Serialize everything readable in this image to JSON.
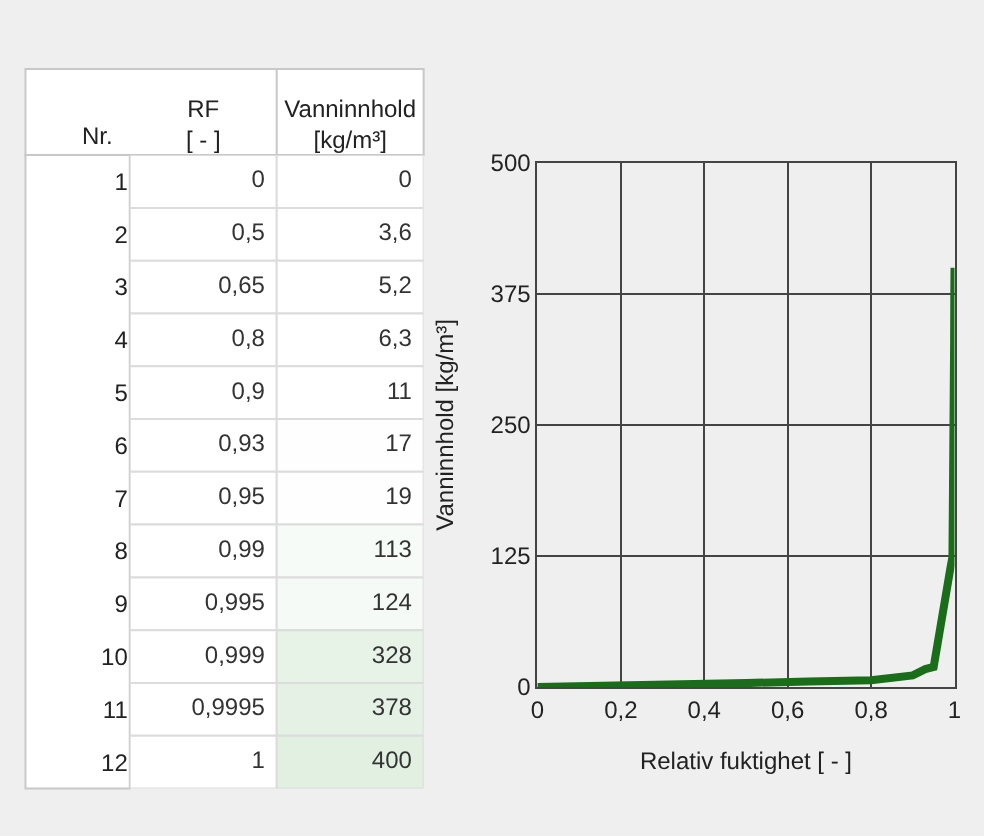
{
  "chart_data": [
    {
      "type": "heatmap",
      "annotations": [
        "Nr."
      ],
      "categories": [
        "RF [ - ]",
        "Vanninnhold [kg/m³]"
      ],
      "y_categories": [
        "1",
        "2",
        "3",
        "4",
        "5",
        "6",
        "7",
        "8",
        "9",
        "10",
        "11",
        "12"
      ],
      "cells": [
        [
          0,
          0
        ],
        [
          0.5,
          3.6
        ],
        [
          0.65,
          5.2
        ],
        [
          0.8,
          6.3
        ],
        [
          0.9,
          11
        ],
        [
          0.93,
          17
        ],
        [
          0.95,
          19
        ],
        [
          0.99,
          113
        ],
        [
          0.995,
          124
        ],
        [
          0.999,
          328
        ],
        [
          0.9995,
          378
        ],
        [
          1,
          400
        ]
      ],
      "cell_labels": [
        [
          "0",
          "0"
        ],
        [
          "0,5",
          "3,6"
        ],
        [
          "0,65",
          "5,2"
        ],
        [
          "0,8",
          "6,3"
        ],
        [
          "0,9",
          "11"
        ],
        [
          "0,93",
          "17"
        ],
        [
          "0,95",
          "19"
        ],
        [
          "0,99",
          "113"
        ],
        [
          "0,995",
          "124"
        ],
        [
          "0,999",
          "328"
        ],
        [
          "0,9995",
          "378"
        ],
        [
          "1",
          "400"
        ]
      ]
    },
    {
      "type": "line",
      "xlabel": "Relativ fuktighet [ - ]",
      "ylabel": "Vanninnhold [kg/m³]",
      "x": [
        0,
        0.5,
        0.65,
        0.8,
        0.9,
        0.93,
        0.95,
        0.99,
        0.995,
        0.999,
        0.9995,
        1
      ],
      "series": [
        {
          "color": "#1a6e1a",
          "values": [
            0,
            3.6,
            5.2,
            6.3,
            11,
            17,
            19,
            113,
            124,
            328,
            378,
            400
          ]
        }
      ],
      "xlim": [
        0,
        1
      ],
      "ylim": [
        0,
        500
      ],
      "xticks": [
        0,
        {
          "value": 0.2,
          "label": "0,2"
        },
        {
          "value": 0.4,
          "label": "0,4"
        },
        {
          "value": 0.6,
          "label": "0,6"
        },
        {
          "value": 0.8,
          "label": "0,8"
        },
        1
      ],
      "yticks": [
        0,
        125,
        250,
        375,
        500
      ],
      "grid": true,
      "legend": false,
      "marker": "none",
      "line_style": "solid"
    }
  ]
}
